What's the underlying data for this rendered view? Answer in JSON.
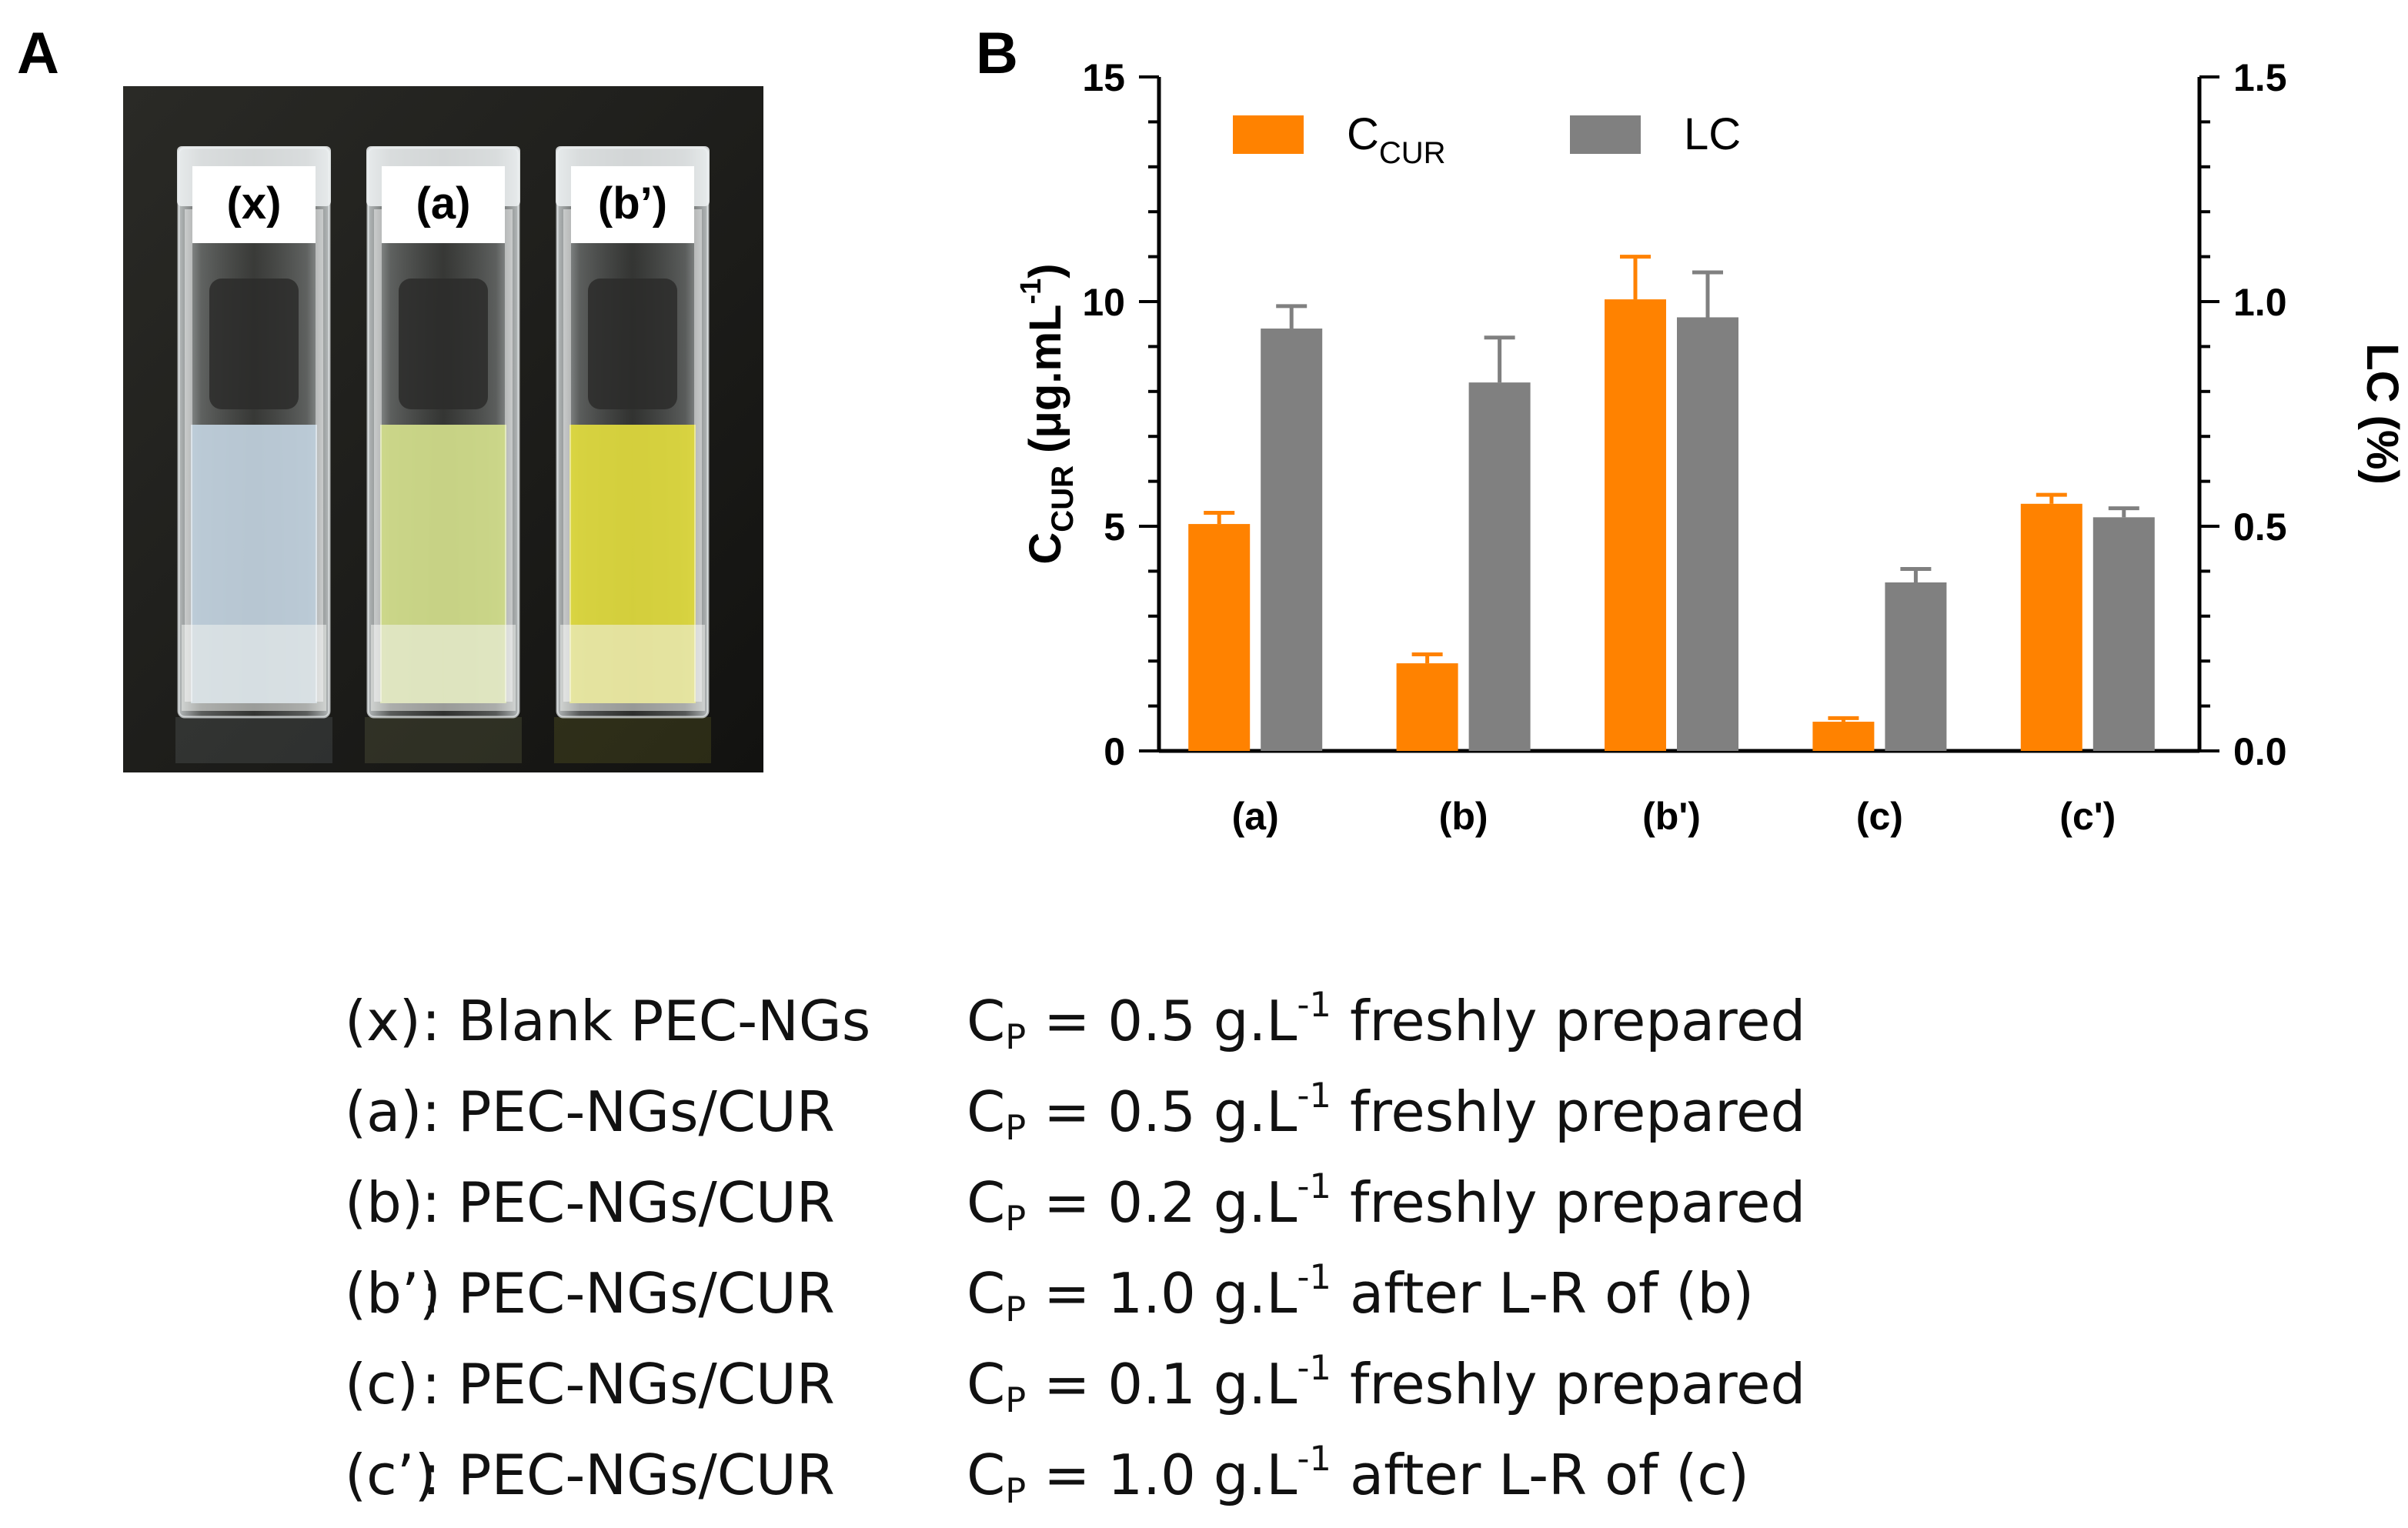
{
  "panels": {
    "a": "A",
    "b": "B"
  },
  "photo": {
    "cuvettes": [
      {
        "label": "(x)",
        "liquid_color": "#c2d3df"
      },
      {
        "label": "(a)",
        "liquid_color": "#d4e08c"
      },
      {
        "label": "(b’)",
        "liquid_color": "#e2dc3e"
      }
    ],
    "background_color": "#1c1c1a"
  },
  "chart_data": {
    "type": "bar",
    "categories": [
      "(a)",
      "(b)",
      "(b')",
      "(c)",
      "(c')"
    ],
    "series": [
      {
        "name": "CCUR",
        "axis": "left",
        "color": "#ff8200",
        "values": [
          5.05,
          1.95,
          10.05,
          0.65,
          5.5
        ],
        "errors": [
          0.25,
          0.2,
          0.95,
          0.08,
          0.2
        ]
      },
      {
        "name": "LC",
        "axis": "right",
        "color": "#808080",
        "values": [
          0.94,
          0.82,
          0.965,
          0.375,
          0.52
        ],
        "errors": [
          0.05,
          0.1,
          0.1,
          0.03,
          0.02
        ]
      }
    ],
    "legend": [
      {
        "main": "C",
        "sub": "CUR"
      },
      {
        "main": "LC",
        "sub": ""
      }
    ],
    "legend_position": "top-left",
    "y_left": {
      "label_main": "C",
      "label_sub": "CUR",
      "label_rest": " (μg.mL",
      "label_sup": "-1",
      "label_end": ")",
      "ylim": [
        0,
        15
      ],
      "ticks": [
        "0",
        "5",
        "10",
        "15"
      ],
      "tick_values": [
        0,
        5,
        10,
        15
      ]
    },
    "y_right": {
      "label": "LC (%)",
      "ylim": [
        0,
        1.5
      ],
      "ticks": [
        "0.0",
        "0.5",
        "1.0",
        "1.5"
      ],
      "tick_values": [
        0,
        0.5,
        1.0,
        1.5
      ]
    },
    "xlabel": "",
    "grid": false
  },
  "legend_block": {
    "rows": [
      {
        "key": "(x)",
        "desc": ": Blank PEC-NGs",
        "c": "C",
        "c_sub": "P",
        "val": " = 0.5 g.L",
        "sup": "-1",
        "state": " freshly prepared"
      },
      {
        "key": "(a)",
        "desc": ": PEC-NGs/CUR",
        "c": "C",
        "c_sub": "P",
        "val": " = 0.5 g.L",
        "sup": "-1",
        "state": " freshly prepared"
      },
      {
        "key": "(b)",
        "desc": ": PEC-NGs/CUR",
        "c": "C",
        "c_sub": "P",
        "val": " = 0.2 g.L",
        "sup": "-1",
        "state": " freshly prepared"
      },
      {
        "key": "(b’)",
        "desc": ": PEC-NGs/CUR",
        "c": "C",
        "c_sub": "P",
        "val": " = 1.0 g.L",
        "sup": "-1",
        "state": " after L-R of (b)"
      },
      {
        "key": "(c)",
        "desc": ": PEC-NGs/CUR",
        "c": "C",
        "c_sub": "P",
        "val": " = 0.1 g.L",
        "sup": "-1",
        "state": " freshly prepared"
      },
      {
        "key": "(c’)",
        "desc": ": PEC-NGs/CUR",
        "c": "C",
        "c_sub": "P",
        "val": " = 1.0 g.L",
        "sup": "-1",
        "state": " after L-R of (c)"
      }
    ]
  }
}
